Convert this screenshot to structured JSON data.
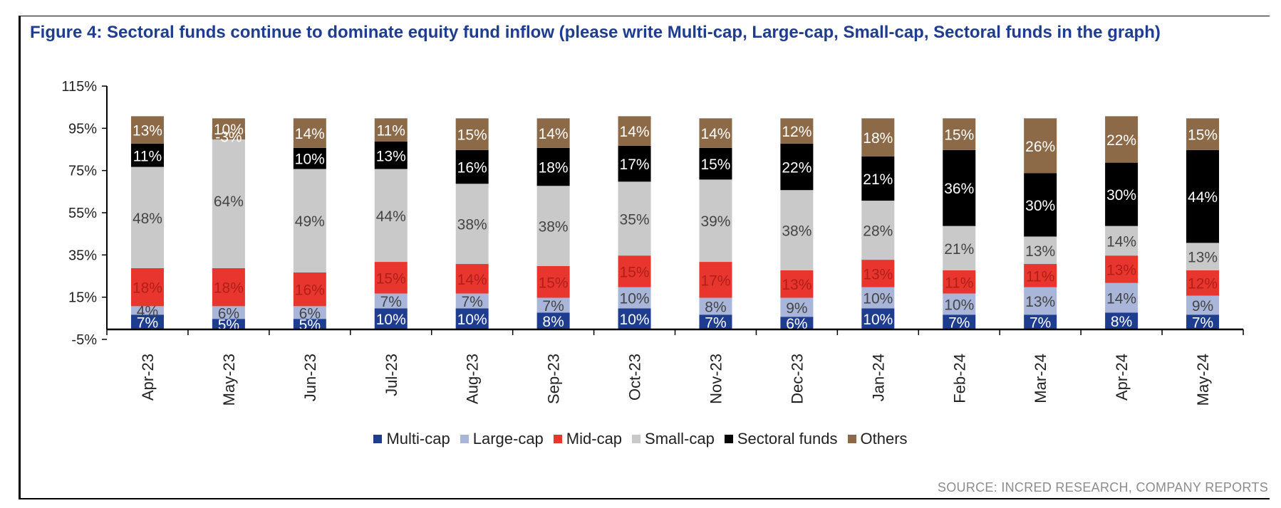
{
  "title": "Figure 4: Sectoral funds continue to dominate equity fund inflow (please write Multi-cap, Large-cap, Small-cap, Sectoral funds in the graph)",
  "source": "SOURCE: INCRED RESEARCH, COMPANY REPORTS",
  "chart_data": {
    "type": "bar",
    "stacked": true,
    "categories": [
      "Apr-23",
      "May-23",
      "Jun-23",
      "Jul-23",
      "Aug-23",
      "Sep-23",
      "Oct-23",
      "Nov-23",
      "Dec-23",
      "Jan-24",
      "Feb-24",
      "Mar-24",
      "Apr-24",
      "May-24"
    ],
    "series": [
      {
        "name": "Multi-cap",
        "color": "#1f3d8f",
        "values": [
          7,
          5,
          5,
          10,
          10,
          8,
          10,
          7,
          6,
          10,
          7,
          7,
          8,
          7
        ],
        "labels": [
          "7%",
          "5%",
          "5%",
          "10%",
          "10%",
          "8%",
          "10%",
          "7%",
          "6%",
          "10%",
          "7%",
          "7%",
          "8%",
          "7%"
        ]
      },
      {
        "name": "Large-cap",
        "color": "#a9b6d9",
        "values": [
          4,
          6,
          6,
          7,
          7,
          7,
          10,
          8,
          9,
          10,
          10,
          13,
          14,
          9
        ],
        "labels": [
          "4%",
          "6%",
          "6%",
          "7%",
          "7%",
          "7%",
          "10%",
          "8%",
          "9%",
          "10%",
          "10%",
          "13%",
          "14%",
          "9%"
        ]
      },
      {
        "name": "Mid-cap",
        "color": "#e8352d",
        "values": [
          18,
          18,
          16,
          15,
          14,
          15,
          15,
          17,
          13,
          13,
          11,
          11,
          13,
          12
        ],
        "labels": [
          "18%",
          "18%",
          "16%",
          "15%",
          "14%",
          "15%",
          "15%",
          "17%",
          "13%",
          "13%",
          "11%",
          "11%",
          "13%",
          "12%"
        ]
      },
      {
        "name": "Small-cap",
        "color": "#c9c9c9",
        "values": [
          48,
          64,
          49,
          44,
          38,
          38,
          35,
          39,
          38,
          28,
          21,
          13,
          14,
          13
        ],
        "labels": [
          "48%",
          "64%",
          "49%",
          "44%",
          "38%",
          "38%",
          "35%",
          "39%",
          "38%",
          "28%",
          "21%",
          "13%",
          "14%",
          "13%"
        ]
      },
      {
        "name": "Sectoral funds",
        "color": "#000000",
        "values": [
          11,
          -3,
          10,
          13,
          16,
          18,
          17,
          15,
          22,
          21,
          36,
          30,
          30,
          44
        ],
        "labels": [
          "11%",
          "-3%",
          "10%",
          "13%",
          "16%",
          "18%",
          "17%",
          "15%",
          "22%",
          "21%",
          "36%",
          "30%",
          "30%",
          "44%"
        ]
      },
      {
        "name": "Others",
        "color": "#8c6a48",
        "values": [
          13,
          10,
          14,
          11,
          15,
          14,
          14,
          14,
          12,
          18,
          15,
          26,
          22,
          15
        ],
        "labels": [
          "13%",
          "10%",
          "14%",
          "11%",
          "15%",
          "14%",
          "14%",
          "14%",
          "12%",
          "18%",
          "15%",
          "26%",
          "22%",
          "15%"
        ]
      }
    ],
    "yticks": [
      "115%",
      "95%",
      "75%",
      "55%",
      "35%",
      "15%",
      "-5%"
    ],
    "ylim": [
      -5,
      115
    ],
    "legend_position": "bottom",
    "grid": false
  }
}
